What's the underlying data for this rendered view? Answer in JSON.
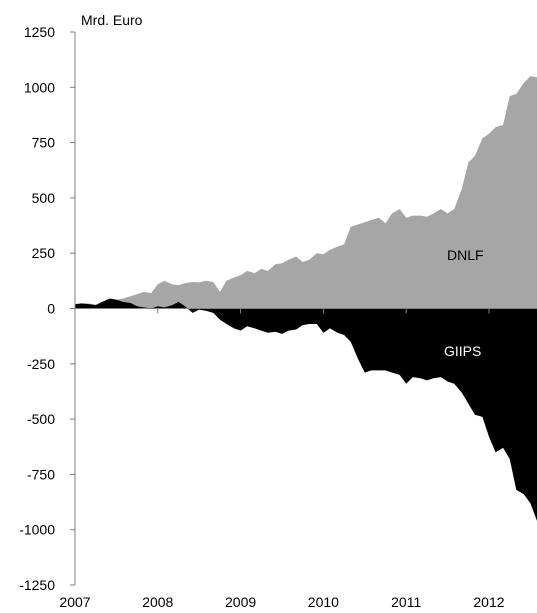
{
  "chart_data": {
    "type": "area",
    "unit_label": "Mrd. Euro",
    "x_tick_labels": [
      "2007",
      "2008",
      "2009",
      "2010",
      "2011",
      "2012"
    ],
    "y_tick_labels": [
      "1250",
      "1000",
      "750",
      "500",
      "250",
      "0",
      "-250",
      "-500",
      "-750",
      "-1000",
      "-1250"
    ],
    "ylim": [
      -1250,
      1250
    ],
    "xlim": [
      2007.0,
      2012.58
    ],
    "grid": false,
    "series": [
      {
        "name": "DNLF",
        "color": "#a6a6a6",
        "x": [
          2007.0,
          2007.08,
          2007.17,
          2007.25,
          2007.33,
          2007.42,
          2007.5,
          2007.58,
          2007.67,
          2007.75,
          2007.83,
          2007.92,
          2008.0,
          2008.08,
          2008.17,
          2008.25,
          2008.33,
          2008.42,
          2008.5,
          2008.58,
          2008.67,
          2008.75,
          2008.83,
          2008.92,
          2009.0,
          2009.08,
          2009.17,
          2009.25,
          2009.33,
          2009.42,
          2009.5,
          2009.58,
          2009.67,
          2009.75,
          2009.83,
          2009.92,
          2010.0,
          2010.08,
          2010.17,
          2010.25,
          2010.33,
          2010.42,
          2010.5,
          2010.58,
          2010.67,
          2010.75,
          2010.83,
          2010.92,
          2011.0,
          2011.08,
          2011.17,
          2011.25,
          2011.33,
          2011.42,
          2011.5,
          2011.58,
          2011.67,
          2011.75,
          2011.83,
          2011.92,
          2012.0,
          2012.08,
          2012.17,
          2012.25,
          2012.33,
          2012.42,
          2012.5,
          2012.58
        ],
        "values": [
          20,
          25,
          22,
          18,
          30,
          45,
          40,
          45,
          55,
          65,
          75,
          70,
          110,
          125,
          110,
          105,
          115,
          120,
          118,
          125,
          120,
          75,
          125,
          140,
          150,
          170,
          160,
          180,
          170,
          200,
          205,
          220,
          235,
          210,
          220,
          250,
          245,
          265,
          280,
          290,
          370,
          380,
          390,
          400,
          410,
          385,
          430,
          450,
          410,
          420,
          420,
          415,
          430,
          450,
          430,
          450,
          540,
          660,
          690,
          770,
          790,
          820,
          830,
          960,
          970,
          1020,
          1050,
          1045
        ]
      },
      {
        "name": "GIIPS",
        "color": "#000000",
        "x": [
          2007.0,
          2007.08,
          2007.17,
          2007.25,
          2007.33,
          2007.42,
          2007.5,
          2007.58,
          2007.67,
          2007.75,
          2007.83,
          2007.92,
          2008.0,
          2008.08,
          2008.17,
          2008.25,
          2008.33,
          2008.42,
          2008.5,
          2008.58,
          2008.67,
          2008.75,
          2008.83,
          2008.92,
          2009.0,
          2009.08,
          2009.17,
          2009.25,
          2009.33,
          2009.42,
          2009.5,
          2009.58,
          2009.67,
          2009.75,
          2009.83,
          2009.92,
          2010.0,
          2010.08,
          2010.17,
          2010.25,
          2010.33,
          2010.42,
          2010.5,
          2010.58,
          2010.67,
          2010.75,
          2010.83,
          2010.92,
          2011.0,
          2011.08,
          2011.17,
          2011.25,
          2011.33,
          2011.42,
          2011.5,
          2011.58,
          2011.67,
          2011.75,
          2011.83,
          2011.92,
          2012.0,
          2012.08,
          2012.17,
          2012.25,
          2012.33,
          2012.42,
          2012.5,
          2012.58
        ],
        "values": [
          20,
          22,
          20,
          15,
          30,
          45,
          40,
          30,
          25,
          10,
          5,
          0,
          10,
          5,
          15,
          30,
          10,
          -20,
          -5,
          -10,
          -20,
          -50,
          -70,
          -90,
          -100,
          -80,
          -90,
          -100,
          -110,
          -105,
          -115,
          -100,
          -95,
          -75,
          -70,
          -70,
          -110,
          -90,
          -110,
          -120,
          -150,
          -230,
          -290,
          -280,
          -280,
          -280,
          -290,
          -300,
          -340,
          -310,
          -315,
          -325,
          -315,
          -310,
          -330,
          -340,
          -380,
          -430,
          -480,
          -490,
          -580,
          -650,
          -630,
          -680,
          -820,
          -840,
          -880,
          -960
        ]
      }
    ],
    "annotations": [
      "DNLF",
      "GIIPS"
    ]
  }
}
